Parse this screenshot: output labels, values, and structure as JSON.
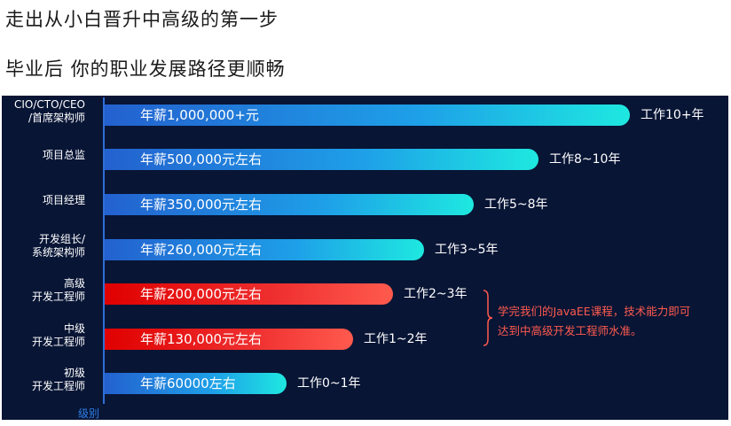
{
  "headings": {
    "line1": "走出从小白晋升中高级的第一步",
    "line2": "毕业后 你的职业发展路径更顺畅"
  },
  "colors": {
    "panel_background": "#081535",
    "blue_bar_gradient": [
      "#2361cf",
      "#1ea0e8",
      "#1ee8e0"
    ],
    "red_bar_gradient": [
      "#e00000",
      "#ef3030",
      "#ff5a4e"
    ],
    "note_color": "#ff5a4e",
    "axis_label_color": "#2f7fe8"
  },
  "chart_data": {
    "type": "bar",
    "orientation": "horizontal",
    "xlabel": "级别",
    "categories": [
      "CIO/CTO/CEO\n/首席架构师",
      "项目总监",
      "项目经理",
      "开发组长/\n系统架构师",
      "高级\n开发工程师",
      "中级\n开发工程师",
      "初级\n开发工程师"
    ],
    "values": [
      1000000,
      500000,
      350000,
      260000,
      200000,
      130000,
      60000
    ],
    "value_unit": "元",
    "bar_labels": [
      "年薪1,000,000+元",
      "年薪500,000元左右",
      "年薪350,000元左右",
      "年薪260,000元左右",
      "年薪200,000元左右",
      "年薪130,000元左右",
      "年薪60000左右"
    ],
    "years": [
      "工作10+年",
      "工作8~10年",
      "工作5~8年",
      "工作3~5年",
      "工作2~3年",
      "工作1~2年",
      "工作0~1年"
    ],
    "bar_colors": [
      "blue",
      "blue",
      "blue",
      "blue",
      "red",
      "red",
      "blue"
    ],
    "annotation": "学完我们的JavaEE课程，技术能力即可\n达到中高级开发工程师水准。"
  }
}
